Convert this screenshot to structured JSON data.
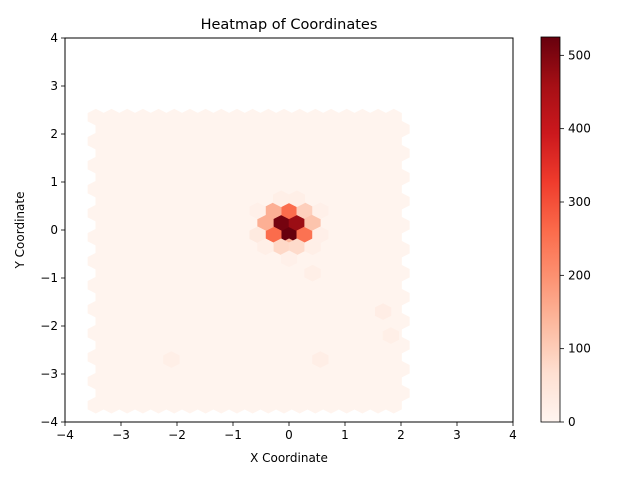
{
  "chart_data": {
    "type": "heatmap",
    "title": "Heatmap of Coordinates",
    "xlabel": "X Coordinate",
    "ylabel": "Y Coordinate",
    "xlim": [
      -4,
      4
    ],
    "ylim": [
      -4,
      4
    ],
    "xticks": [
      "−4",
      "−3",
      "−2",
      "−1",
      "0",
      "1",
      "2",
      "3",
      "4"
    ],
    "yticks": [
      "−4",
      "−3",
      "−2",
      "−1",
      "0",
      "1",
      "2",
      "3",
      "4"
    ],
    "grid": false,
    "colormap": "Reds",
    "colorbar": {
      "min": 0,
      "max": 525,
      "ticks": [
        "0",
        "100",
        "200",
        "300",
        "400",
        "500"
      ]
    },
    "hex_extent": {
      "x": [
        -3.45,
        2.1
      ],
      "y": [
        -3.65,
        2.35
      ]
    },
    "background_count": 4,
    "hot_cells": [
      {
        "x": 0.0,
        "y": -0.1,
        "count": 525
      },
      {
        "x": -0.14,
        "y": 0.15,
        "count": 510
      },
      {
        "x": 0.14,
        "y": 0.15,
        "count": 470
      },
      {
        "x": 0.0,
        "y": 0.4,
        "count": 260
      },
      {
        "x": -0.28,
        "y": -0.1,
        "count": 260
      },
      {
        "x": 0.28,
        "y": -0.1,
        "count": 250
      },
      {
        "x": -0.28,
        "y": 0.4,
        "count": 150
      },
      {
        "x": 0.28,
        "y": 0.4,
        "count": 95
      },
      {
        "x": -0.42,
        "y": 0.15,
        "count": 150
      },
      {
        "x": 0.42,
        "y": 0.15,
        "count": 115
      },
      {
        "x": 0.0,
        "y": -0.35,
        "count": 140
      },
      {
        "x": -0.14,
        "y": -0.35,
        "count": 80
      },
      {
        "x": 0.14,
        "y": -0.35,
        "count": 75
      },
      {
        "x": -0.56,
        "y": -0.1,
        "count": 35
      },
      {
        "x": -0.14,
        "y": 0.65,
        "count": 20
      },
      {
        "x": 0.14,
        "y": 0.65,
        "count": 20
      },
      {
        "x": -0.42,
        "y": -0.35,
        "count": 20
      },
      {
        "x": 0.42,
        "y": -0.35,
        "count": 20
      },
      {
        "x": 0.56,
        "y": -0.1,
        "count": 18
      },
      {
        "x": -0.56,
        "y": 0.4,
        "count": 15
      },
      {
        "x": 0.56,
        "y": 0.4,
        "count": 15
      },
      {
        "x": 0.0,
        "y": -0.6,
        "count": 15
      },
      {
        "x": 0.42,
        "y": -0.9,
        "count": 20
      },
      {
        "x": 1.68,
        "y": -1.7,
        "count": 25
      },
      {
        "x": 1.82,
        "y": -2.2,
        "count": 20
      },
      {
        "x": 0.56,
        "y": -2.7,
        "count": 22
      },
      {
        "x": -2.1,
        "y": -2.7,
        "count": 20
      }
    ]
  }
}
